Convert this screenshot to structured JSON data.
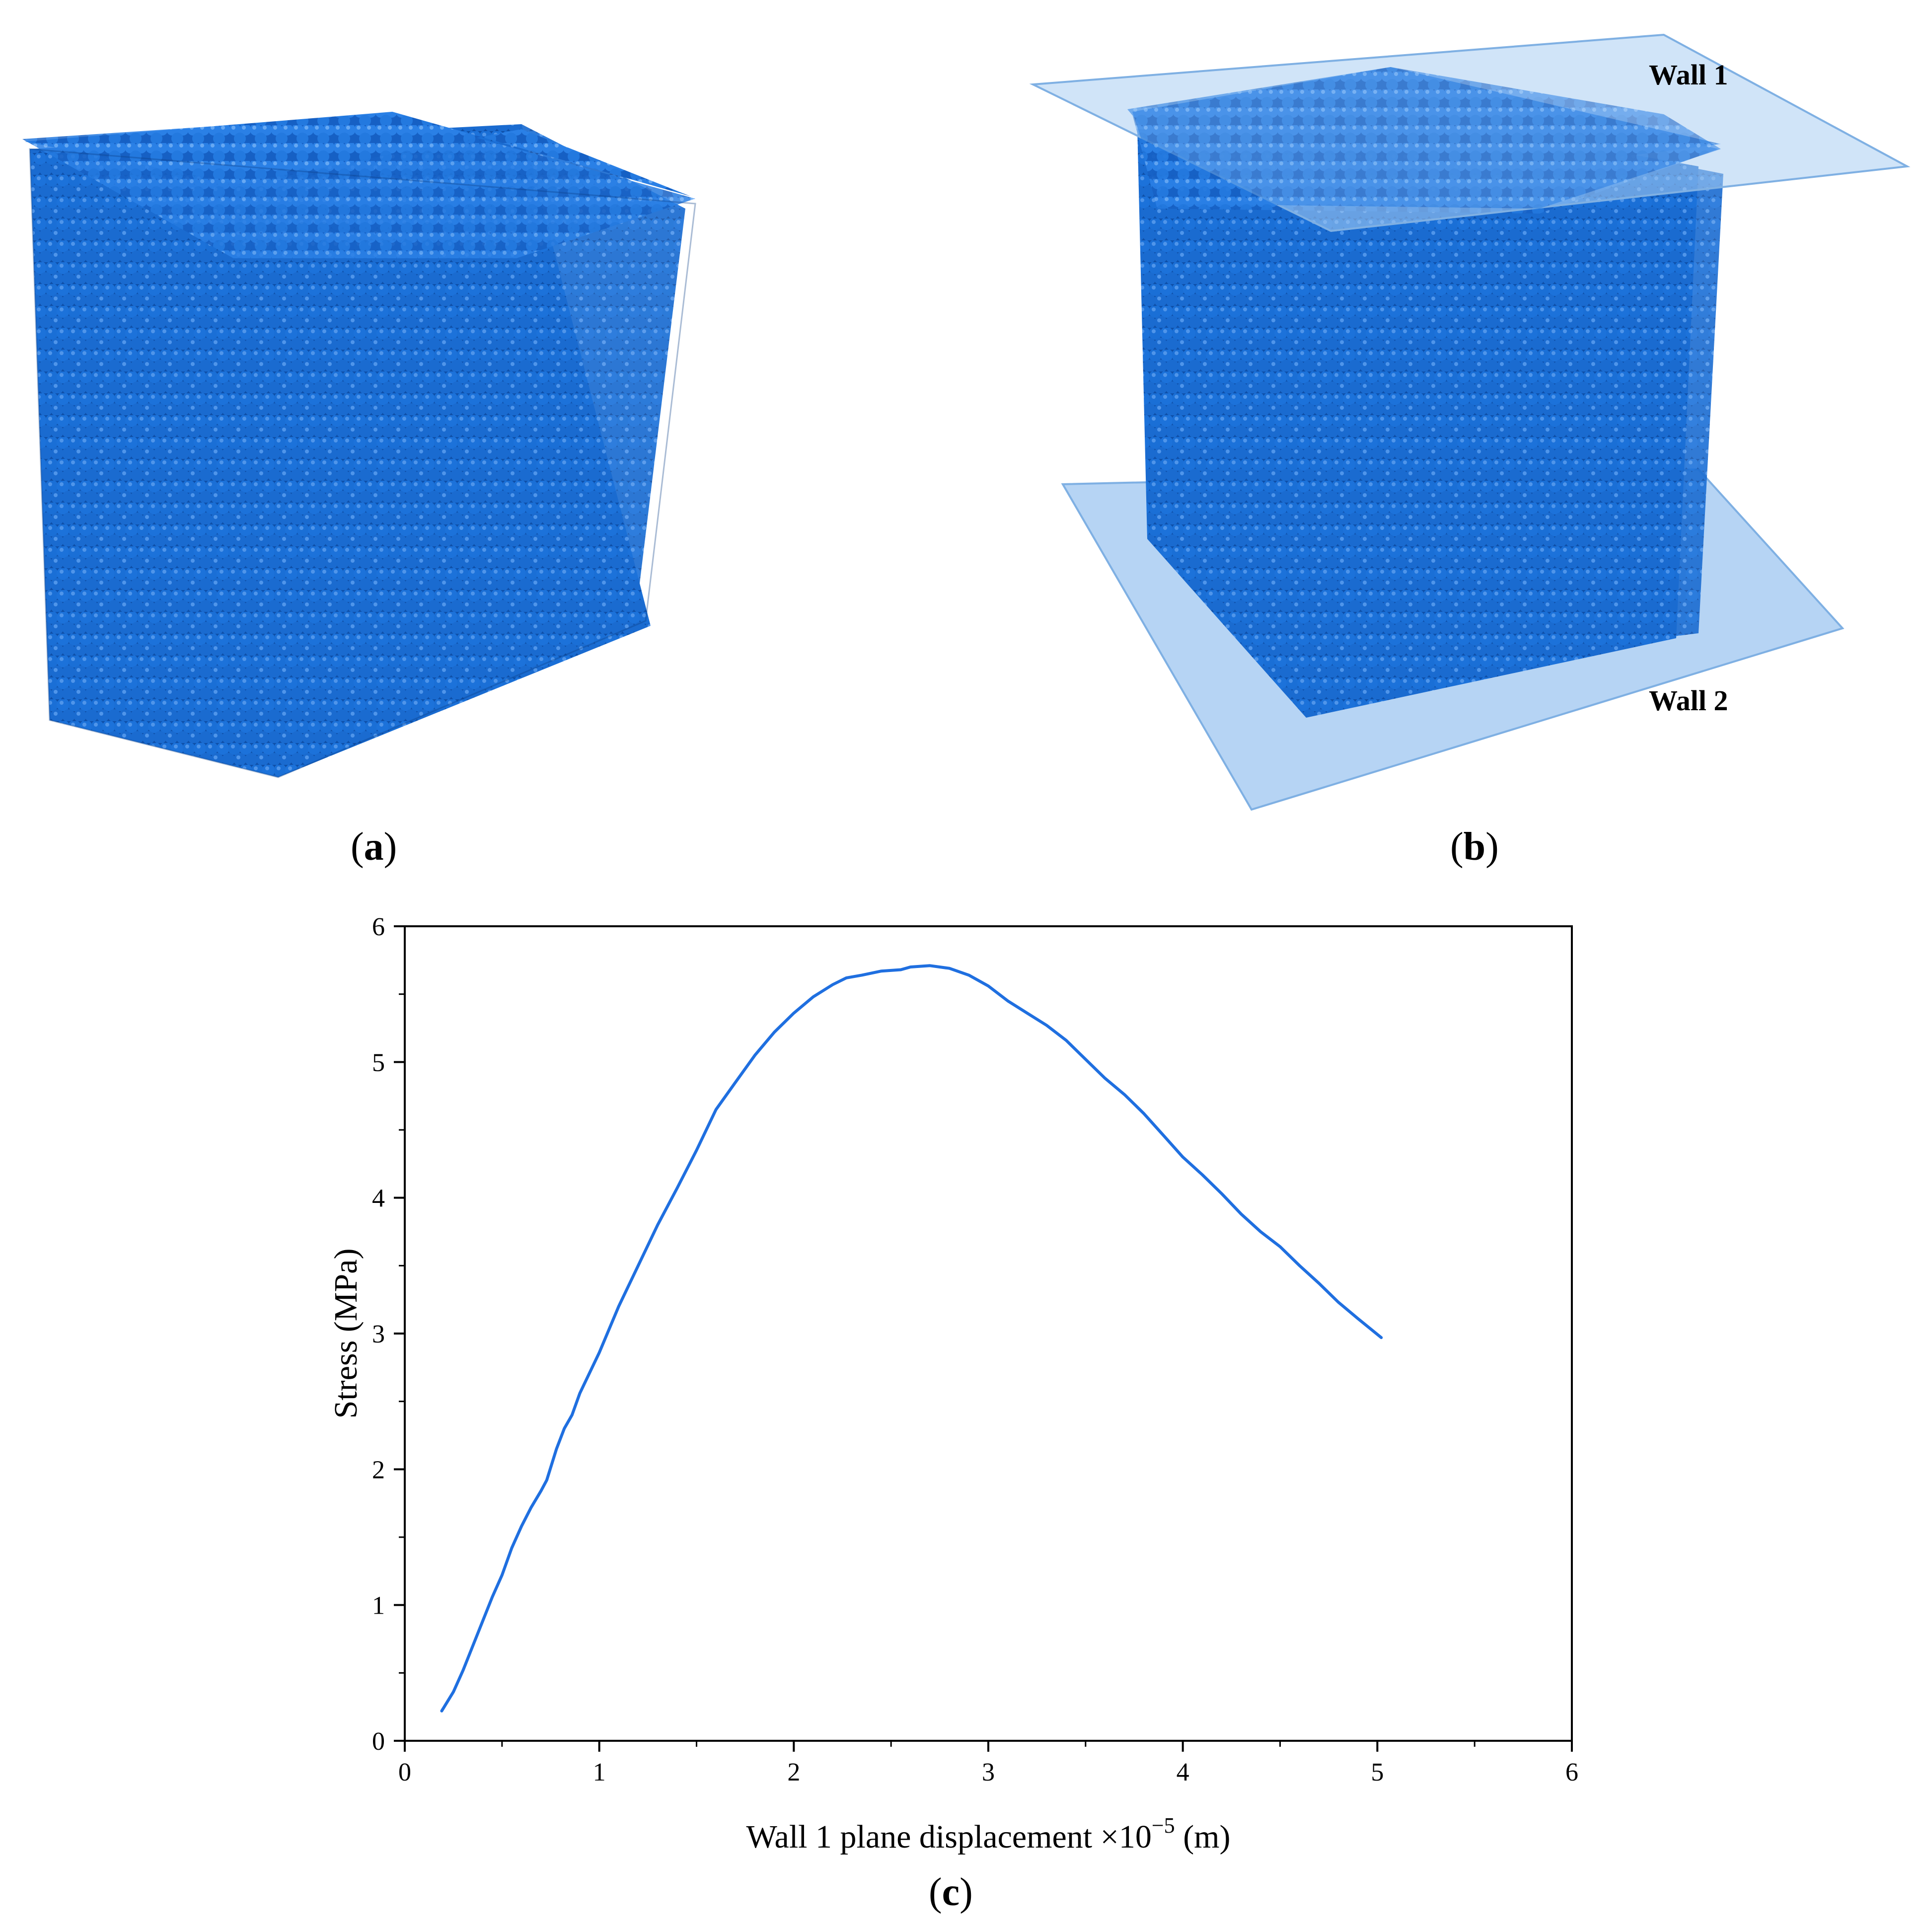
{
  "colors": {
    "particle": "#1a6fd6",
    "particle_dark": "#0e4fa8",
    "particle_light": "#5aa0f0",
    "wall_fill": "#a9cdf2",
    "curve": "#1f6fe0",
    "axis": "#000000"
  },
  "panel_a": {
    "caption_open": "(",
    "caption_letter": "a",
    "caption_close": ")"
  },
  "panel_b": {
    "caption_open": "(",
    "caption_letter": "b",
    "caption_close": ")",
    "wall_top_label": "Wall 1",
    "wall_bottom_label": "Wall 2"
  },
  "panel_c": {
    "caption_open": "(",
    "caption_letter": "c",
    "caption_close": ")"
  },
  "chart_data": {
    "type": "line",
    "title": "",
    "xlabel_text": "Wall 1 plane displacement ×10",
    "xlabel_exponent": "−5",
    "xlabel_unit": " (m)",
    "ylabel": "Stress (MPa)",
    "xlim": [
      0,
      6
    ],
    "ylim": [
      0,
      6
    ],
    "xticks": [
      "0",
      "1",
      "2",
      "3",
      "4",
      "5",
      "6"
    ],
    "yticks": [
      "0",
      "1",
      "2",
      "3",
      "4",
      "5",
      "6"
    ],
    "series": [
      {
        "name": "Stress",
        "x": [
          0.19,
          0.25,
          0.3,
          0.35,
          0.4,
          0.45,
          0.5,
          0.55,
          0.6,
          0.65,
          0.7,
          0.73,
          0.78,
          0.82,
          0.86,
          0.9,
          1.0,
          1.1,
          1.2,
          1.3,
          1.4,
          1.5,
          1.6,
          1.7,
          1.8,
          1.9,
          2.0,
          2.1,
          2.2,
          2.27,
          2.35,
          2.45,
          2.55,
          2.6,
          2.7,
          2.8,
          2.9,
          3.0,
          3.1,
          3.2,
          3.3,
          3.4,
          3.5,
          3.6,
          3.7,
          3.8,
          3.9,
          4.0,
          4.1,
          4.2,
          4.3,
          4.4,
          4.5,
          4.6,
          4.7,
          4.8,
          4.9,
          5.02
        ],
        "values": [
          0.22,
          0.36,
          0.52,
          0.7,
          0.88,
          1.06,
          1.22,
          1.42,
          1.58,
          1.72,
          1.84,
          1.92,
          2.15,
          2.3,
          2.4,
          2.56,
          2.86,
          3.2,
          3.5,
          3.8,
          4.07,
          4.35,
          4.65,
          4.85,
          5.05,
          5.22,
          5.36,
          5.48,
          5.57,
          5.62,
          5.64,
          5.67,
          5.68,
          5.7,
          5.71,
          5.69,
          5.64,
          5.56,
          5.45,
          5.36,
          5.27,
          5.16,
          5.02,
          4.88,
          4.76,
          4.62,
          4.46,
          4.3,
          4.17,
          4.03,
          3.88,
          3.75,
          3.64,
          3.5,
          3.37,
          3.23,
          3.11,
          2.97
        ]
      }
    ]
  }
}
